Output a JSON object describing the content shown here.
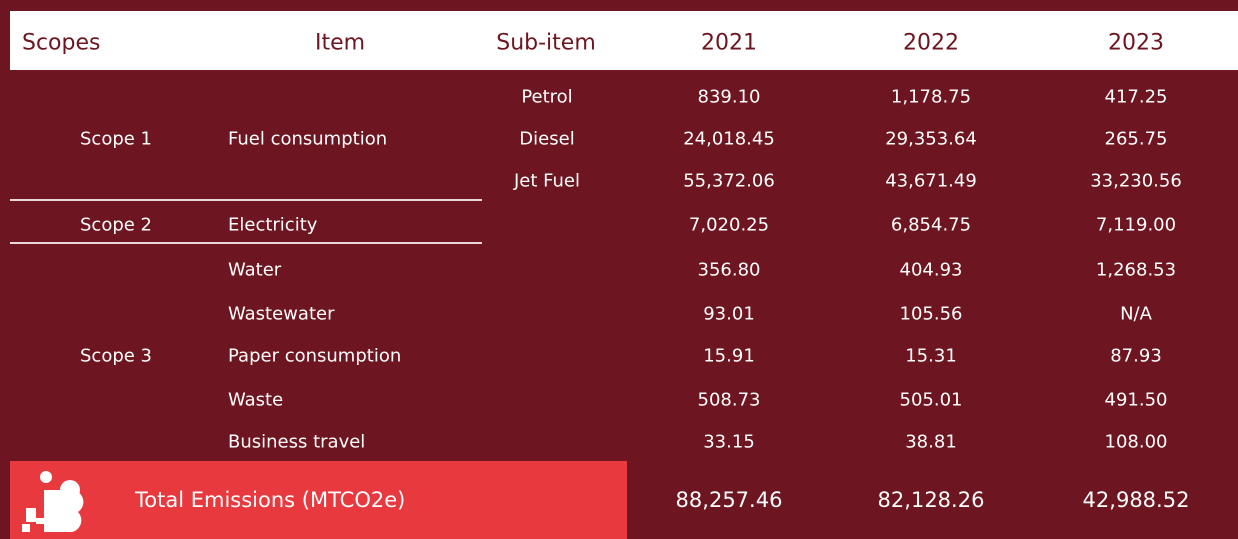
{
  "table": {
    "header": [
      "Scopes",
      "Item",
      "Sub-item",
      "2021",
      "2022",
      "2023"
    ],
    "groups": [
      {
        "scope": "Scope 1",
        "item": "Fuel consumption",
        "rows": [
          {
            "sub_item": "Petrol",
            "values": [
              "839.10",
              "1,178.75",
              "417.25"
            ]
          },
          {
            "sub_item": "Diesel",
            "values": [
              "24,018.45",
              "29,353.64",
              "265.75"
            ]
          },
          {
            "sub_item": "Jet Fuel",
            "values": [
              "55,372.06",
              "43,671.49",
              "33,230.56"
            ]
          }
        ]
      },
      {
        "scope": "Scope 2",
        "rows": [
          {
            "item": "Electricity",
            "values": [
              "7,020.25",
              "6,854.75",
              "7,119.00"
            ]
          }
        ]
      },
      {
        "scope": "Scope 3",
        "rows": [
          {
            "item": "Water",
            "values": [
              "356.80",
              "404.93",
              "1,268.53"
            ]
          },
          {
            "item": "Wastewater",
            "values": [
              "93.01",
              "105.56",
              "N/A"
            ]
          },
          {
            "item": "Paper consumption",
            "values": [
              "15.91",
              "15.31",
              "87.93"
            ]
          },
          {
            "item": "Waste",
            "values": [
              "508.73",
              "505.01",
              "491.50"
            ]
          },
          {
            "item": "Business travel",
            "values": [
              "33.15",
              "38.81",
              "108.00"
            ]
          }
        ]
      }
    ],
    "total": {
      "label": "Total Emissions (MTCO2e)",
      "values": [
        "88,257.46",
        "82,128.26",
        "42,988.52"
      ]
    }
  }
}
